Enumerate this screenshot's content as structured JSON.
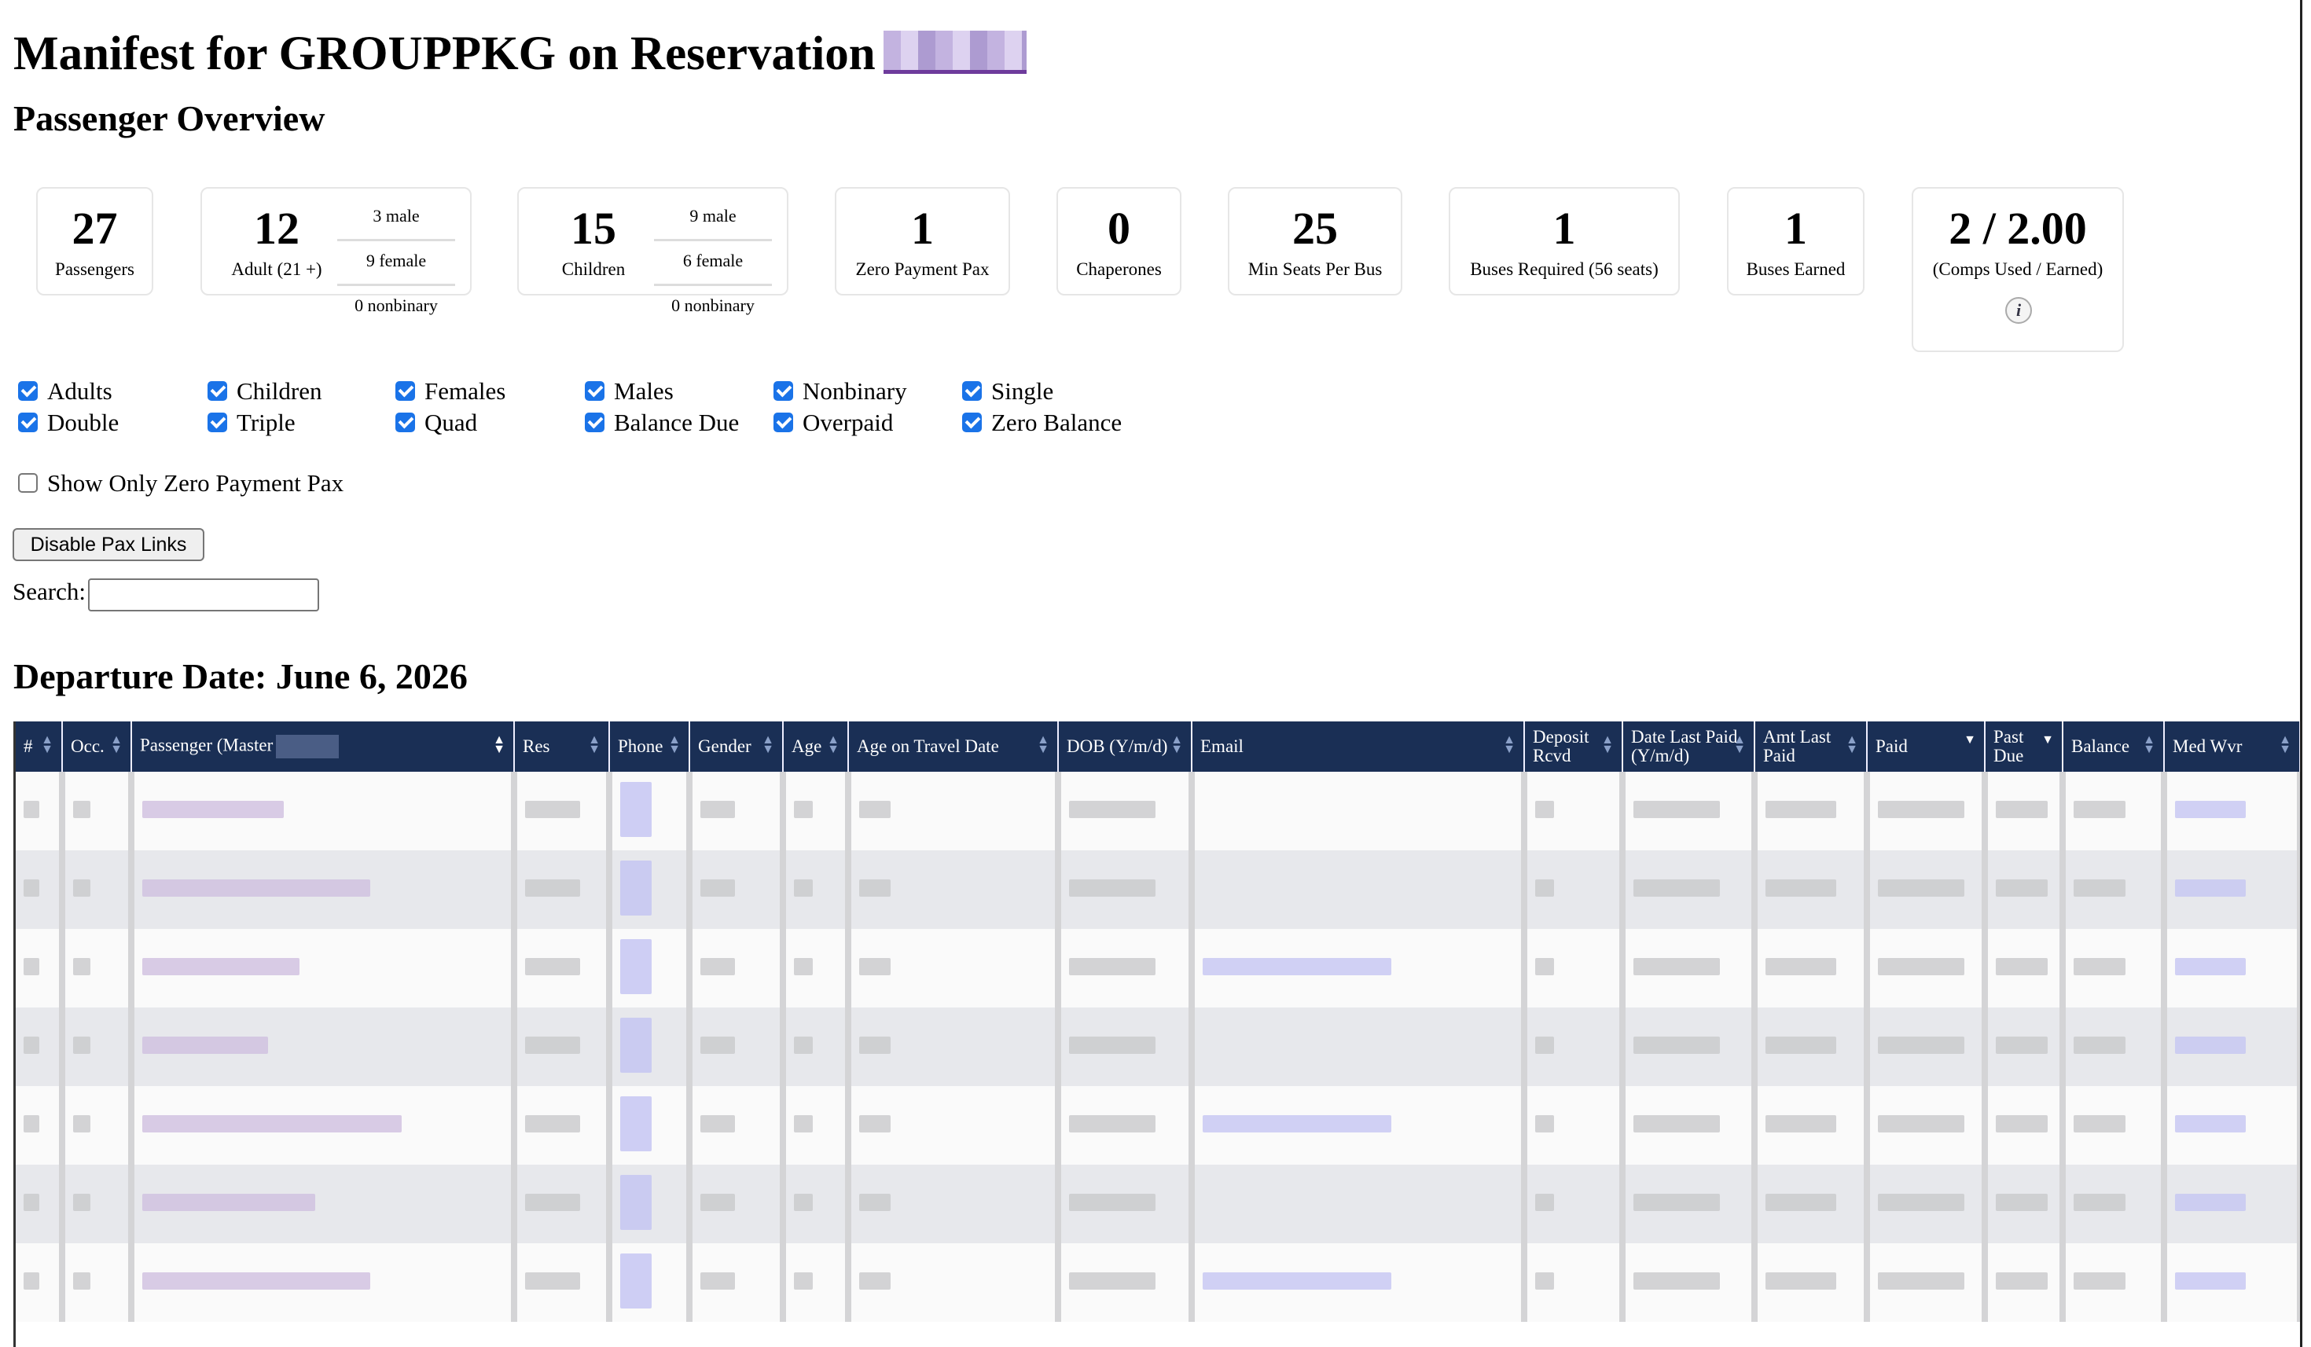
{
  "header": {
    "title": "Manifest for GROUPPKG on Reservation",
    "subtitle": "Passenger Overview"
  },
  "cards": [
    {
      "value": "27",
      "label": "Passengers"
    },
    {
      "value": "12",
      "label": "Adult (21 +)",
      "breakdown": [
        "3 male",
        "9 female",
        "0 nonbinary"
      ]
    },
    {
      "value": "15",
      "label": "Children",
      "breakdown": [
        "9 male",
        "6 female",
        "0 nonbinary"
      ]
    },
    {
      "value": "1",
      "label": "Zero Payment Pax"
    },
    {
      "value": "0",
      "label": "Chaperones"
    },
    {
      "value": "25",
      "label": "Min Seats Per Bus"
    },
    {
      "value": "1",
      "label": "Buses Required (56 seats)"
    },
    {
      "value": "1",
      "label": "Buses Earned"
    },
    {
      "value": "2 / 2.00",
      "label": "(Comps Used / Earned)",
      "info_icon": "i"
    }
  ],
  "filters": {
    "row1": [
      "Adults",
      "Children",
      "Females",
      "Males",
      "Nonbinary",
      "Single"
    ],
    "row2": [
      "Double",
      "Triple",
      "Quad",
      "Balance Due",
      "Overpaid",
      "Zero Balance"
    ],
    "zero_payment_label": "Show Only Zero Payment Pax",
    "zero_payment_checked": false
  },
  "disable_links_button": "Disable Pax Links",
  "search": {
    "label": "Search:",
    "value": ""
  },
  "departure_heading": "Departure Date: June 6, 2026",
  "table": {
    "columns": [
      "#",
      "Occ.",
      "Passenger (Master",
      "Res",
      "Phone",
      "Gender",
      "Age",
      "Age on Travel Date",
      "DOB (Y/m/d)",
      "Email",
      "Deposit Rcvd",
      "Date Last Paid (Y/m/d)",
      "Amt Last Paid",
      "Paid",
      "Past Due",
      "Balance",
      "Med Wvr"
    ]
  }
}
